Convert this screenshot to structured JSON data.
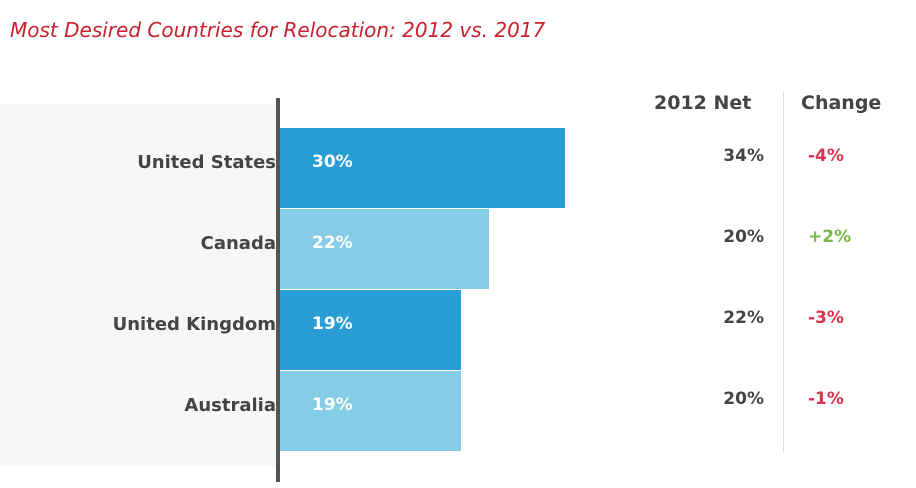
{
  "chart_data": {
    "type": "bar",
    "orientation": "horizontal",
    "title": "Most Desired Countries for Relocation: 2012 vs. 2017",
    "categories": [
      "United States",
      "Canada",
      "United Kingdom",
      "Australia"
    ],
    "values": [
      30,
      22,
      19,
      19
    ],
    "value_labels": [
      "30%",
      "22%",
      "19%",
      "19%"
    ],
    "table": {
      "headers": [
        "2012 Net",
        "Change"
      ],
      "net_2012": [
        "34%",
        "20%",
        "22%",
        "20%"
      ],
      "change": [
        "-4%",
        "+2%",
        "-3%",
        "-1%"
      ]
    },
    "colors": {
      "bar_dark": "#2a9cd6",
      "bar_light": "#85cde6",
      "title": "#c8202e",
      "negative": "#d9334d",
      "positive": "#7ab648",
      "text": "#444444"
    }
  }
}
